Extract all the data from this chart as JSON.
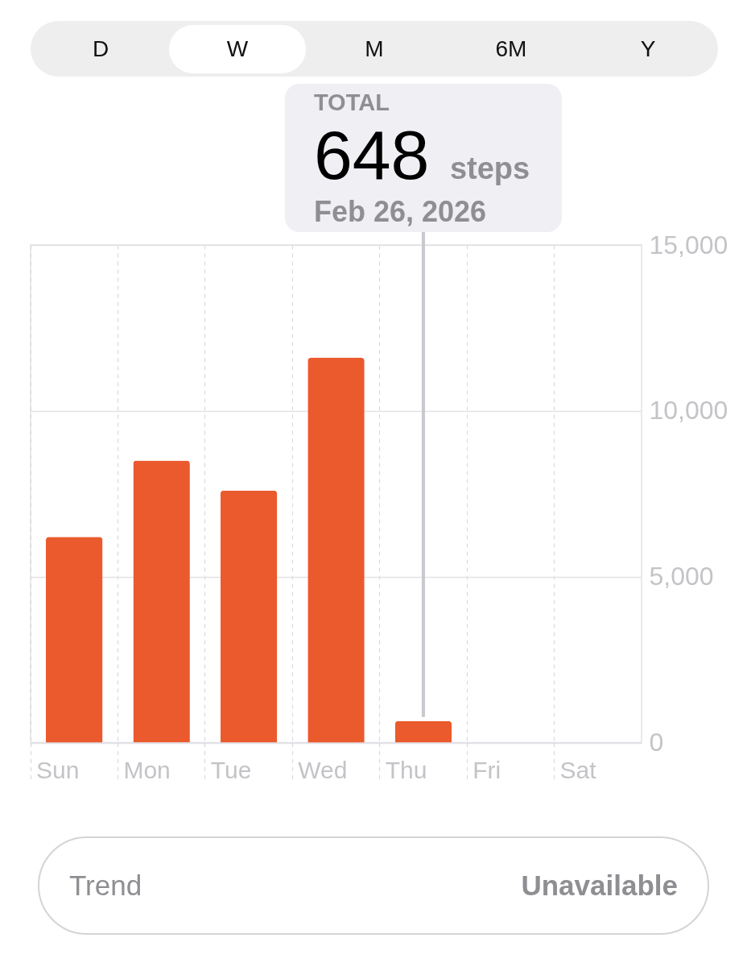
{
  "chart_data": {
    "type": "bar",
    "categories": [
      "Sun",
      "Mon",
      "Tue",
      "Wed",
      "Thu",
      "Fri",
      "Sat"
    ],
    "values": [
      6200,
      8500,
      7600,
      11600,
      648,
      null,
      null
    ],
    "color": "#eb5a2d",
    "ylim": [
      0,
      15000
    ],
    "yticks": [
      0,
      {
        "value": 5000,
        "label": "5,000"
      },
      {
        "value": 10000,
        "label": "10,000"
      },
      {
        "value": 15000,
        "label": "15,000"
      }
    ],
    "grid": true,
    "ref_lines": [
      {
        "axis": "x",
        "value": "Thu",
        "color": "#c8c8cd"
      }
    ],
    "annotations": [
      "D",
      "W",
      "M",
      "6M",
      "Y",
      "TOTAL",
      "648",
      "steps",
      "Feb 26, 2026",
      "Trend",
      "Unavailable"
    ]
  }
}
